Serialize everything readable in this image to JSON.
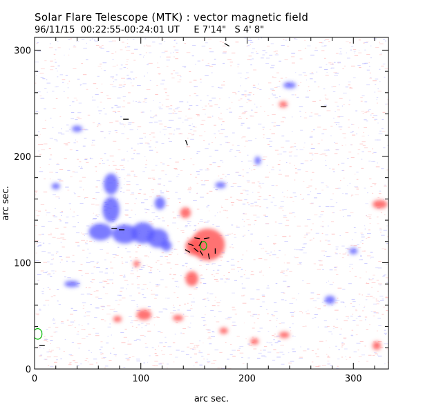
{
  "header": {
    "title": "Solar Flare Telescope (MTK) : vector magnetic field",
    "subtitle": "96/11/15  00:22:55-00:24:01 UT     E 7'14\"   S 4' 8\""
  },
  "chart_data": {
    "type": "heatmap",
    "title": "Solar Flare Telescope (MTK) : vector magnetic field",
    "subtitle": "96/11/15  00:22:55-00:24:01 UT     E 7'14\"   S 4' 8\"",
    "xlabel": "arc sec.",
    "ylabel": "arc sec.",
    "xlim": [
      0,
      333
    ],
    "ylim": [
      0,
      312
    ],
    "xticks": [
      0,
      100,
      200,
      300
    ],
    "yticks": [
      0,
      100,
      200,
      300
    ],
    "colors": {
      "positive": "#ff5a5a",
      "negative": "#5a5aff",
      "vectors": "#000000",
      "contour": "#00bb00",
      "noise_pos": "#ffc4c4",
      "noise_neg": "#c4c4ff"
    },
    "grid": false,
    "positive_regions": [
      {
        "x": 163,
        "y": 117,
        "rx": 16,
        "ry": 15
      },
      {
        "x": 150,
        "y": 115,
        "rx": 8,
        "ry": 8
      },
      {
        "x": 148,
        "y": 85,
        "rx": 6,
        "ry": 7
      },
      {
        "x": 142,
        "y": 147,
        "rx": 5,
        "ry": 5
      },
      {
        "x": 103,
        "y": 51,
        "rx": 7,
        "ry": 5
      },
      {
        "x": 78,
        "y": 47,
        "rx": 4,
        "ry": 3
      },
      {
        "x": 135,
        "y": 48,
        "rx": 5,
        "ry": 3
      },
      {
        "x": 96,
        "y": 99,
        "rx": 3,
        "ry": 3
      },
      {
        "x": 235,
        "y": 32,
        "rx": 5,
        "ry": 3
      },
      {
        "x": 325,
        "y": 155,
        "rx": 7,
        "ry": 4
      },
      {
        "x": 322,
        "y": 22,
        "rx": 4,
        "ry": 4
      },
      {
        "x": 178,
        "y": 36,
        "rx": 4,
        "ry": 3
      },
      {
        "x": 207,
        "y": 26,
        "rx": 4,
        "ry": 3
      },
      {
        "x": 234,
        "y": 249,
        "rx": 4,
        "ry": 3
      }
    ],
    "negative_regions": [
      {
        "x": 72,
        "y": 174,
        "rx": 7,
        "ry": 10
      },
      {
        "x": 72,
        "y": 150,
        "rx": 8,
        "ry": 12
      },
      {
        "x": 62,
        "y": 129,
        "rx": 11,
        "ry": 8
      },
      {
        "x": 85,
        "y": 127,
        "rx": 12,
        "ry": 9
      },
      {
        "x": 102,
        "y": 128,
        "rx": 11,
        "ry": 10
      },
      {
        "x": 116,
        "y": 123,
        "rx": 10,
        "ry": 9
      },
      {
        "x": 118,
        "y": 156,
        "rx": 5,
        "ry": 6
      },
      {
        "x": 124,
        "y": 116,
        "rx": 5,
        "ry": 5
      },
      {
        "x": 278,
        "y": 65,
        "rx": 5,
        "ry": 4
      },
      {
        "x": 210,
        "y": 196,
        "rx": 3,
        "ry": 4
      },
      {
        "x": 35,
        "y": 80,
        "rx": 7,
        "ry": 3
      },
      {
        "x": 20,
        "y": 172,
        "rx": 4,
        "ry": 3
      },
      {
        "x": 300,
        "y": 111,
        "rx": 4,
        "ry": 3
      },
      {
        "x": 175,
        "y": 173,
        "rx": 5,
        "ry": 3
      },
      {
        "x": 40,
        "y": 226,
        "rx": 5,
        "ry": 3
      },
      {
        "x": 240,
        "y": 267,
        "rx": 6,
        "ry": 3
      }
    ],
    "transverse_vectors": [
      {
        "x": 153,
        "y": 123,
        "a": 170
      },
      {
        "x": 162,
        "y": 123,
        "a": 10
      },
      {
        "x": 147,
        "y": 117,
        "a": 160
      },
      {
        "x": 152,
        "y": 112,
        "a": 140
      },
      {
        "x": 157,
        "y": 109,
        "a": 120
      },
      {
        "x": 164,
        "y": 106,
        "a": 100
      },
      {
        "x": 170,
        "y": 111,
        "a": 90
      },
      {
        "x": 144,
        "y": 111,
        "a": 150
      },
      {
        "x": 156,
        "y": 118,
        "a": 60
      },
      {
        "x": 82,
        "y": 131,
        "a": 0
      },
      {
        "x": 75,
        "y": 132,
        "a": 0
      },
      {
        "x": 272,
        "y": 247,
        "a": 0
      },
      {
        "x": 86,
        "y": 235,
        "a": 0
      },
      {
        "x": 143,
        "y": 213,
        "a": 110
      },
      {
        "x": 181,
        "y": 305,
        "a": 150
      },
      {
        "x": 7,
        "y": 22,
        "a": 0
      }
    ],
    "contours": [
      {
        "x": 159,
        "y": 116,
        "rx": 3,
        "ry": 4
      },
      {
        "x": 3,
        "y": 33,
        "rx": 4,
        "ry": 5
      }
    ]
  }
}
